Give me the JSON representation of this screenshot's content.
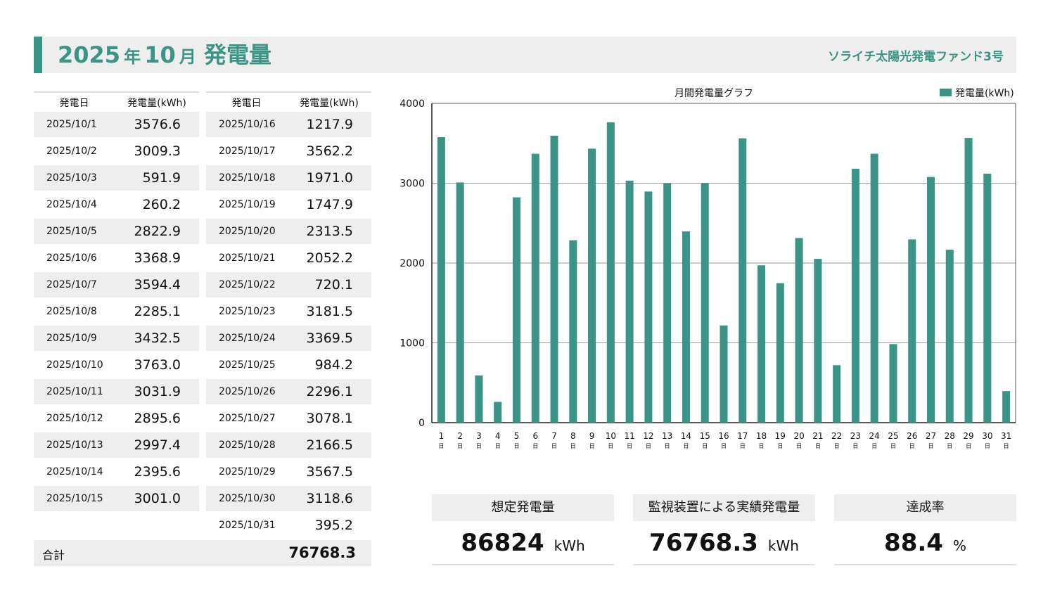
{
  "header": {
    "year": "2025",
    "year_suffix": "年",
    "month": "10",
    "month_suffix": "月",
    "title": "発電量",
    "fund_name": "ソライチ太陽光発電ファンド3号"
  },
  "table": {
    "col_date": "発電日",
    "col_value": "発電量(kWh)",
    "total_label": "合計",
    "total_value": "76768.3",
    "rows": [
      {
        "date": "2025/10/1",
        "value": "3576.6"
      },
      {
        "date": "2025/10/2",
        "value": "3009.3"
      },
      {
        "date": "2025/10/3",
        "value": "591.9"
      },
      {
        "date": "2025/10/4",
        "value": "260.2"
      },
      {
        "date": "2025/10/5",
        "value": "2822.9"
      },
      {
        "date": "2025/10/6",
        "value": "3368.9"
      },
      {
        "date": "2025/10/7",
        "value": "3594.4"
      },
      {
        "date": "2025/10/8",
        "value": "2285.1"
      },
      {
        "date": "2025/10/9",
        "value": "3432.5"
      },
      {
        "date": "2025/10/10",
        "value": "3763.0"
      },
      {
        "date": "2025/10/11",
        "value": "3031.9"
      },
      {
        "date": "2025/10/12",
        "value": "2895.6"
      },
      {
        "date": "2025/10/13",
        "value": "2997.4"
      },
      {
        "date": "2025/10/14",
        "value": "2395.6"
      },
      {
        "date": "2025/10/15",
        "value": "3001.0"
      },
      {
        "date": "2025/10/16",
        "value": "1217.9"
      },
      {
        "date": "2025/10/17",
        "value": "3562.2"
      },
      {
        "date": "2025/10/18",
        "value": "1971.0"
      },
      {
        "date": "2025/10/19",
        "value": "1747.9"
      },
      {
        "date": "2025/10/20",
        "value": "2313.5"
      },
      {
        "date": "2025/10/21",
        "value": "2052.2"
      },
      {
        "date": "2025/10/22",
        "value": "720.1"
      },
      {
        "date": "2025/10/23",
        "value": "3181.5"
      },
      {
        "date": "2025/10/24",
        "value": "3369.5"
      },
      {
        "date": "2025/10/25",
        "value": "984.2"
      },
      {
        "date": "2025/10/26",
        "value": "2296.1"
      },
      {
        "date": "2025/10/27",
        "value": "3078.1"
      },
      {
        "date": "2025/10/28",
        "value": "2166.5"
      },
      {
        "date": "2025/10/29",
        "value": "3567.5"
      },
      {
        "date": "2025/10/30",
        "value": "3118.6"
      },
      {
        "date": "2025/10/31",
        "value": "395.2"
      }
    ]
  },
  "chart_data": {
    "type": "bar",
    "title": "月間発電量グラフ",
    "legend_position": "top-right",
    "grid": true,
    "ylim": [
      0,
      4000
    ],
    "yticks": [
      0,
      1000,
      2000,
      3000,
      4000
    ],
    "x_suffix": "日",
    "categories": [
      "1",
      "2",
      "3",
      "4",
      "5",
      "6",
      "7",
      "8",
      "9",
      "10",
      "11",
      "12",
      "13",
      "14",
      "15",
      "16",
      "17",
      "18",
      "19",
      "20",
      "21",
      "22",
      "23",
      "24",
      "25",
      "26",
      "27",
      "28",
      "29",
      "30",
      "31"
    ],
    "series": [
      {
        "name": "発電量(kWh)",
        "color": "#3a9587",
        "values": [
          3576.6,
          3009.3,
          591.9,
          260.2,
          2822.9,
          3368.9,
          3594.4,
          2285.1,
          3432.5,
          3763.0,
          3031.9,
          2895.6,
          2997.4,
          2395.6,
          3001.0,
          1217.9,
          3562.2,
          1971.0,
          1747.9,
          2313.5,
          2052.2,
          720.1,
          3181.5,
          3369.5,
          984.2,
          2296.1,
          3078.1,
          2166.5,
          3567.5,
          3118.6,
          395.2
        ]
      }
    ]
  },
  "kpis": [
    {
      "label": "想定発電量",
      "value": "86824",
      "unit": "kWh"
    },
    {
      "label": "監視装置による実績発電量",
      "value": "76768.3",
      "unit": "kWh"
    },
    {
      "label": "達成率",
      "value": "88.4",
      "unit": "%"
    }
  ]
}
